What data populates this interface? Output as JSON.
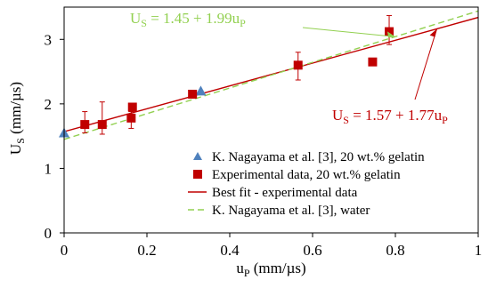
{
  "chart_data": {
    "type": "scatter",
    "xlabel": "u_P (mm/µs)",
    "ylabel": "U_S (mm/µs)",
    "xlim": [
      0,
      1
    ],
    "ylim": [
      0,
      3.5
    ],
    "xticks": [
      0,
      0.2,
      0.4,
      0.6,
      0.8,
      1
    ],
    "xtick_labels": [
      "0",
      "0.2",
      "0.4",
      "0.6",
      "0.8",
      "1"
    ],
    "yticks": [
      0,
      1,
      2,
      3
    ],
    "ytick_labels": [
      "0",
      "1",
      "2",
      "3"
    ],
    "grid": false,
    "legend_position": "bottom-right",
    "series": [
      {
        "name": "K. Nagayama et al. [3], 20 wt.% gelatin",
        "kind": "scatter",
        "marker": "triangle",
        "color": "#4f81bd",
        "points": [
          {
            "x": 0.0,
            "y": 1.55
          },
          {
            "x": 0.33,
            "y": 2.2
          }
        ]
      },
      {
        "name": "Experimental data, 20 wt.% gelatin",
        "kind": "scatter",
        "marker": "square",
        "color": "#c00000",
        "points": [
          {
            "x": 0.05,
            "y": 1.68,
            "err_lo": 1.55,
            "err_hi": 1.88
          },
          {
            "x": 0.092,
            "y": 1.68,
            "err_lo": 1.53,
            "err_hi": 2.03
          },
          {
            "x": 0.162,
            "y": 1.78,
            "err_lo": 1.62,
            "err_hi": 1.88
          },
          {
            "x": 0.165,
            "y": 1.95,
            "err_lo": 1.95,
            "err_hi": 1.95
          },
          {
            "x": 0.31,
            "y": 2.15,
            "err_lo": 2.15,
            "err_hi": 2.15
          },
          {
            "x": 0.565,
            "y": 2.6,
            "err_lo": 2.37,
            "err_hi": 2.8
          },
          {
            "x": 0.745,
            "y": 2.65,
            "err_lo": 2.65,
            "err_hi": 2.65
          },
          {
            "x": 0.785,
            "y": 3.12,
            "err_lo": 2.92,
            "err_hi": 3.37
          }
        ]
      },
      {
        "name": "Best fit - experimental data",
        "kind": "line",
        "style": "solid",
        "color": "#c00000",
        "intercept": 1.57,
        "slope": 1.77
      },
      {
        "name": "K. Nagayama et al. [3], water",
        "kind": "line",
        "style": "dashed",
        "color": "#92d050",
        "intercept": 1.45,
        "slope": 1.99
      }
    ],
    "annotations": [
      {
        "text_parts": [
          "U",
          "S",
          " = 1.45 + 1.99u",
          "P"
        ],
        "color": "#92d050",
        "points_to": {
          "x": 0.8,
          "y": 3.04
        }
      },
      {
        "text_parts": [
          "U",
          "S",
          " = 1.57 + 1.77u",
          "P"
        ],
        "color": "#c00000",
        "points_to": {
          "x": 0.9,
          "y": 3.16
        }
      }
    ]
  }
}
